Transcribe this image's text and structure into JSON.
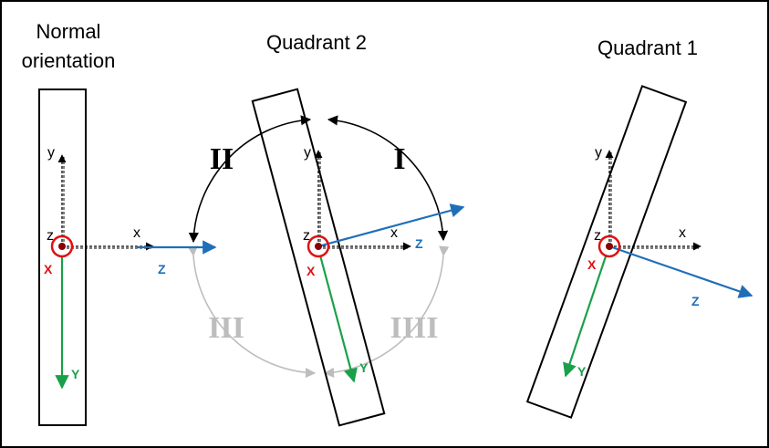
{
  "titles": {
    "normal_line1": "Normal",
    "normal_line2": "orientation",
    "quadrant2": "Quadrant 2",
    "quadrant1": "Quadrant 1"
  },
  "axes": {
    "lab_x": "x",
    "lab_y": "y",
    "lab_z": "z",
    "body_x": "X",
    "body_y": "Y",
    "body_z": "Z"
  },
  "rotations": {
    "r1": "I",
    "r2": "II",
    "r3": "III",
    "r4": "IIII"
  },
  "colors": {
    "border": "#000000",
    "dashed_axes": "#000000",
    "body_x_marker": "#e01010",
    "body_y_axis": "#1aa04a",
    "body_z_axis": "#1f6fb8",
    "active_arc": "#000000",
    "inactive_arc": "#bdbdbd"
  }
}
